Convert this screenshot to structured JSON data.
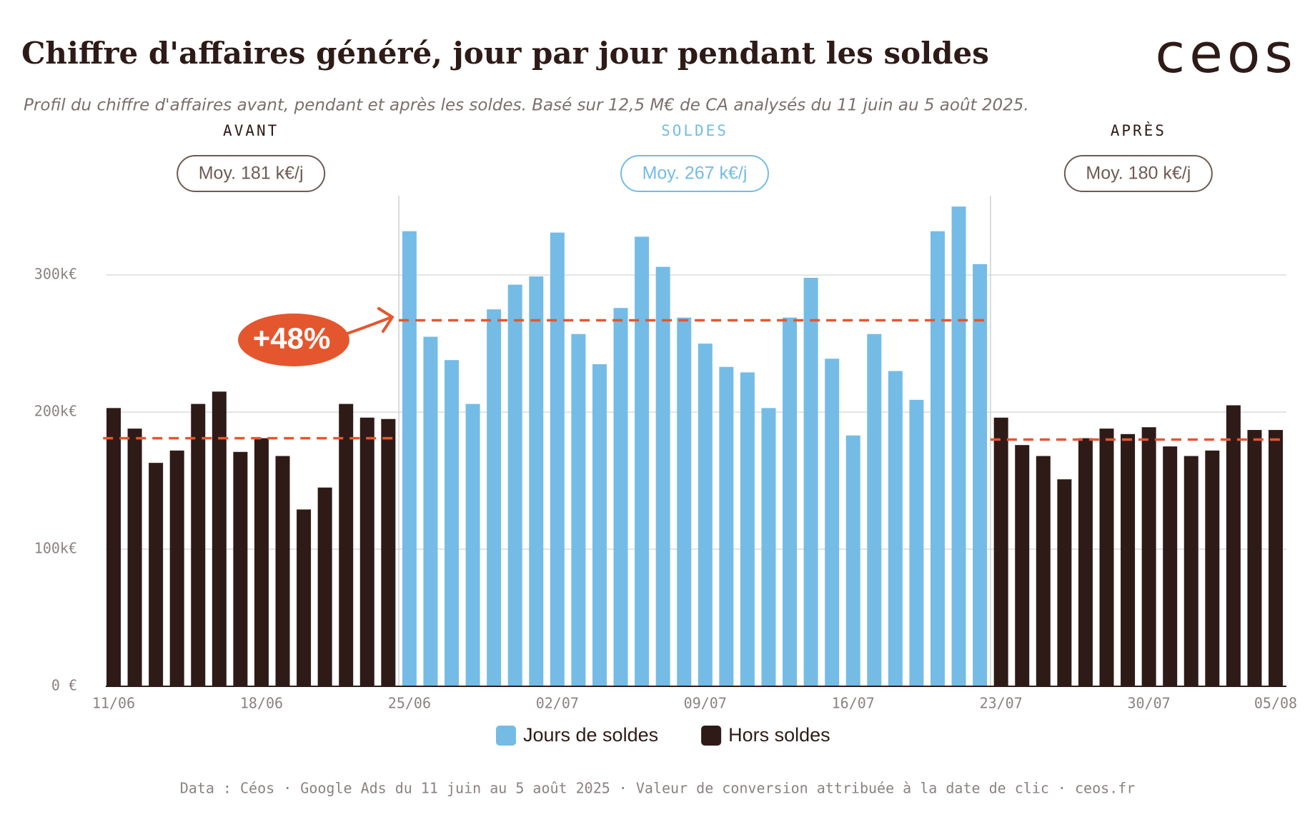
{
  "chart_data": {
    "type": "bar",
    "title": "Chiffre d'affaires généré, jour par jour pendant les soldes",
    "subtitle": "Profil du chiffre d'affaires avant, pendant et après les soldes. Basé sur 12,5 M€ de CA analysés du 11 juin au 5 août 2025.",
    "logo": "ceos",
    "footer": "Data : Céos · Google Ads du 11 juin au 5 août 2025 · Valeur de conversion attribuée à la date de clic · ceos.fr",
    "annotation": "+48%",
    "categories": [
      "11/06",
      null,
      null,
      null,
      null,
      null,
      null,
      "18/06",
      null,
      null,
      null,
      null,
      null,
      null,
      "25/06",
      null,
      null,
      null,
      null,
      null,
      null,
      "02/07",
      null,
      null,
      null,
      null,
      null,
      null,
      "09/07",
      null,
      null,
      null,
      null,
      null,
      null,
      "16/07",
      null,
      null,
      null,
      null,
      null,
      null,
      "23/07",
      null,
      null,
      null,
      null,
      null,
      null,
      "30/07",
      null,
      null,
      null,
      null,
      null,
      "05/08"
    ],
    "series": [
      {
        "name": "Jours de soldes",
        "color": "#74bce6",
        "values": [
          null,
          null,
          null,
          null,
          null,
          null,
          null,
          null,
          null,
          null,
          null,
          null,
          null,
          null,
          332,
          255,
          238,
          206,
          275,
          293,
          299,
          331,
          257,
          235,
          276,
          328,
          306,
          269,
          250,
          233,
          229,
          203,
          269,
          298,
          239,
          183,
          257,
          230,
          209,
          332,
          350,
          308,
          null,
          null,
          null,
          null,
          null,
          null,
          null,
          null,
          null,
          null,
          null,
          null,
          null,
          null
        ]
      },
      {
        "name": "Hors soldes",
        "color": "#2e1b17",
        "values": [
          203,
          188,
          163,
          172,
          206,
          215,
          171,
          181,
          168,
          129,
          145,
          206,
          196,
          195,
          null,
          null,
          null,
          null,
          null,
          null,
          null,
          null,
          null,
          null,
          null,
          null,
          null,
          null,
          null,
          null,
          null,
          null,
          null,
          null,
          null,
          null,
          null,
          null,
          null,
          null,
          null,
          null,
          196,
          176,
          168,
          151,
          181,
          188,
          184,
          189,
          175,
          168,
          172,
          205,
          187,
          187
        ]
      }
    ],
    "periods": [
      {
        "name": "AVANT",
        "label": "Moy. 181 k€/j",
        "average": 181,
        "color": "#2e1b17"
      },
      {
        "name": "SOLDES",
        "label": "Moy. 267 k€/j",
        "average": 267,
        "color": "#74bce6"
      },
      {
        "name": "APRÈS",
        "label": "Moy. 180 k€/j",
        "average": 180,
        "color": "#2e1b17"
      }
    ],
    "ylim": [
      0,
      360
    ],
    "yticks": [
      {
        "value": 0,
        "label": "0 €"
      },
      {
        "value": 100,
        "label": "100k€"
      },
      {
        "value": 200,
        "label": "200k€"
      },
      {
        "value": 300,
        "label": "300k€"
      }
    ],
    "grid": true,
    "average_color": "#e4572e"
  }
}
